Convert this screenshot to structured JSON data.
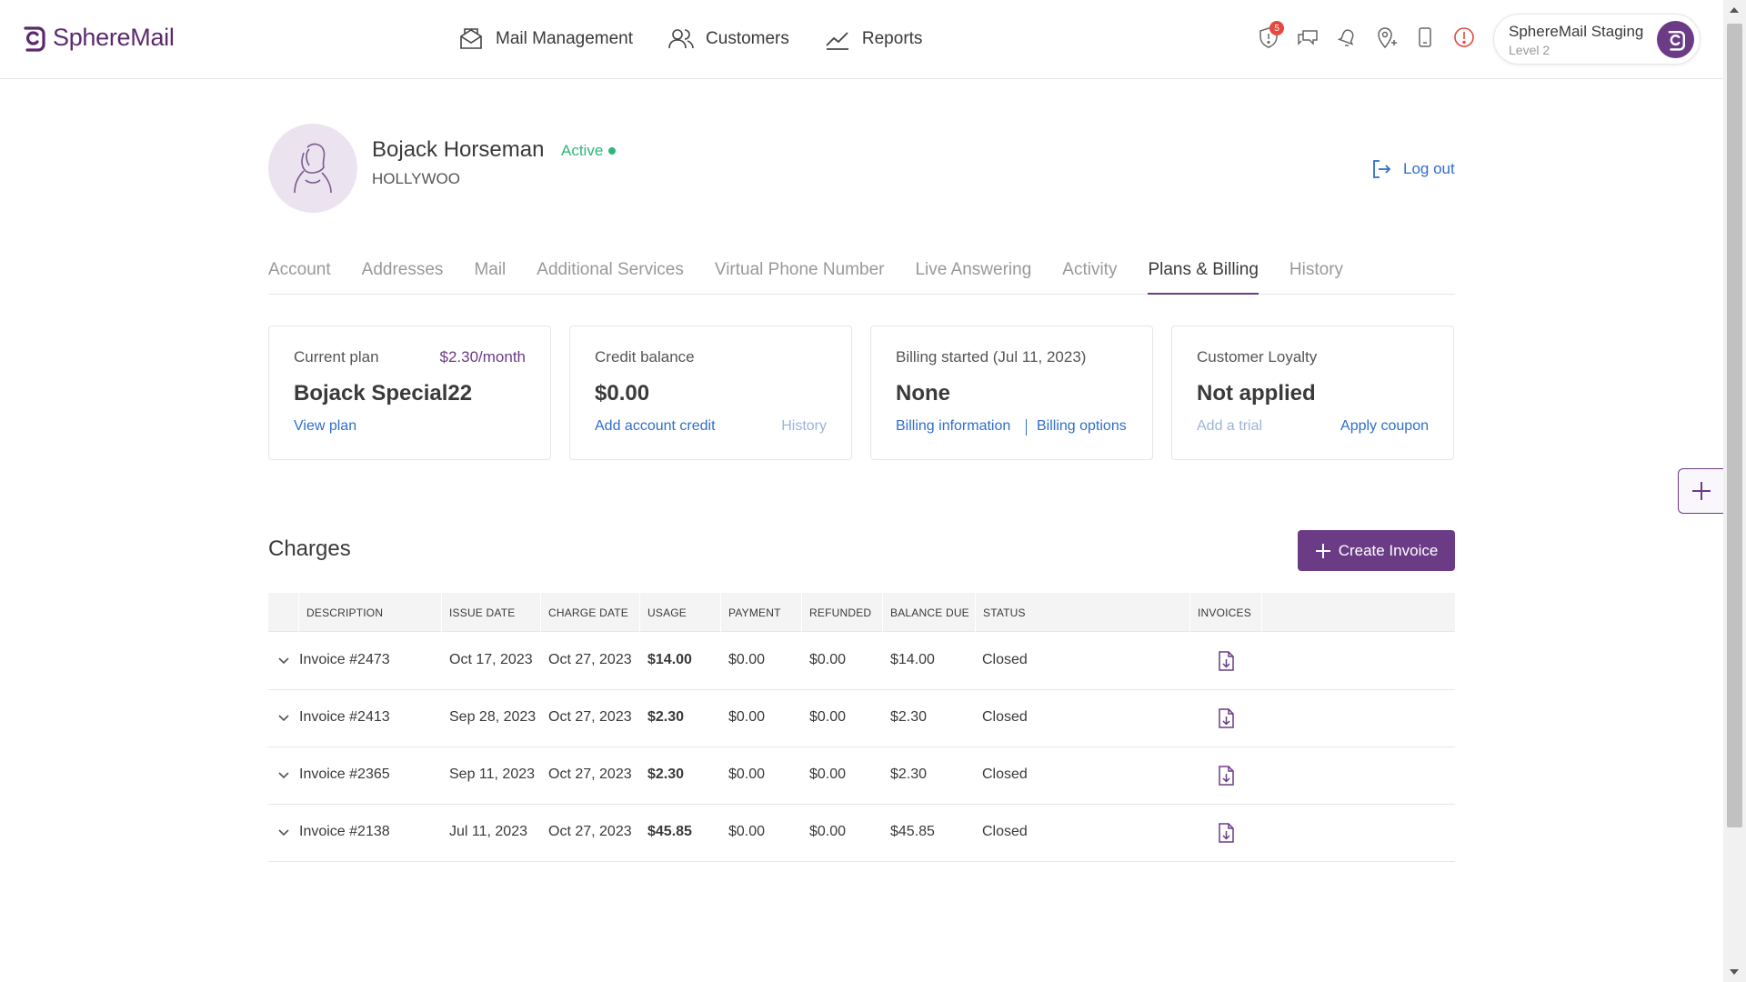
{
  "brand": {
    "name": "SphereMail",
    "color": "#5b2a6e"
  },
  "nav": [
    {
      "label": "Mail Management",
      "icon": "mail-management-icon"
    },
    {
      "label": "Customers",
      "icon": "customers-icon"
    },
    {
      "label": "Reports",
      "icon": "reports-icon"
    }
  ],
  "header_icons": [
    {
      "name": "shield-alert-icon",
      "badge": "5"
    },
    {
      "name": "chat-icon"
    },
    {
      "name": "bell-icon"
    },
    {
      "name": "location-pin-icon"
    },
    {
      "name": "mobile-phone-icon"
    },
    {
      "name": "alert-circle-icon"
    }
  ],
  "org": {
    "name": "SphereMail Staging",
    "level": "Level 2"
  },
  "customer": {
    "name": "Bojack Horseman",
    "status": "Active",
    "city": "HOLLYWOO",
    "logout_label": "Log out"
  },
  "tabs": [
    "Account",
    "Addresses",
    "Mail",
    "Additional Services",
    "Virtual Phone Number",
    "Live Answering",
    "Activity",
    "Plans & Billing",
    "History"
  ],
  "active_tab": "Plans & Billing",
  "cards": {
    "plan": {
      "label": "Current plan",
      "price": "$2.30/month",
      "value": "Bojack Special22",
      "link": "View plan"
    },
    "credit": {
      "label": "Credit balance",
      "value": "$0.00",
      "link": "Add account credit",
      "link2": "History"
    },
    "billing": {
      "label": "Billing started (Jul 11, 2023)",
      "value": "None",
      "link": "Billing information",
      "link2": "Billing options"
    },
    "loyalty": {
      "label": "Customer Loyalty",
      "value": "Not applied",
      "link": "Add a trial",
      "link2": "Apply coupon"
    }
  },
  "charges": {
    "title": "Charges",
    "create_label": "Create Invoice",
    "columns": [
      "Description",
      "Issue date",
      "Charge date",
      "Usage",
      "Payment",
      "Refunded",
      "Balance due",
      "Status",
      "Invoices"
    ],
    "rows": [
      {
        "description": "Invoice #2473",
        "issue": "Oct 17, 2023",
        "charge": "Oct 27, 2023",
        "usage": "$14.00",
        "payment": "$0.00",
        "refunded": "$0.00",
        "balance": "$14.00",
        "status": "Closed"
      },
      {
        "description": "Invoice #2413",
        "issue": "Sep 28, 2023",
        "charge": "Oct 27, 2023",
        "usage": "$2.30",
        "payment": "$0.00",
        "refunded": "$0.00",
        "balance": "$2.30",
        "status": "Closed"
      },
      {
        "description": "Invoice #2365",
        "issue": "Sep 11, 2023",
        "charge": "Oct 27, 2023",
        "usage": "$2.30",
        "payment": "$0.00",
        "refunded": "$0.00",
        "balance": "$2.30",
        "status": "Closed"
      },
      {
        "description": "Invoice #2138",
        "issue": "Jul 11, 2023",
        "charge": "Oct 27, 2023",
        "usage": "$45.85",
        "payment": "$0.00",
        "refunded": "$0.00",
        "balance": "$45.85",
        "status": "Closed"
      }
    ]
  },
  "colors": {
    "accent": "#6b3b86",
    "link": "#2f6fc9",
    "success": "#2fb67a",
    "badge": "#e5483f"
  }
}
